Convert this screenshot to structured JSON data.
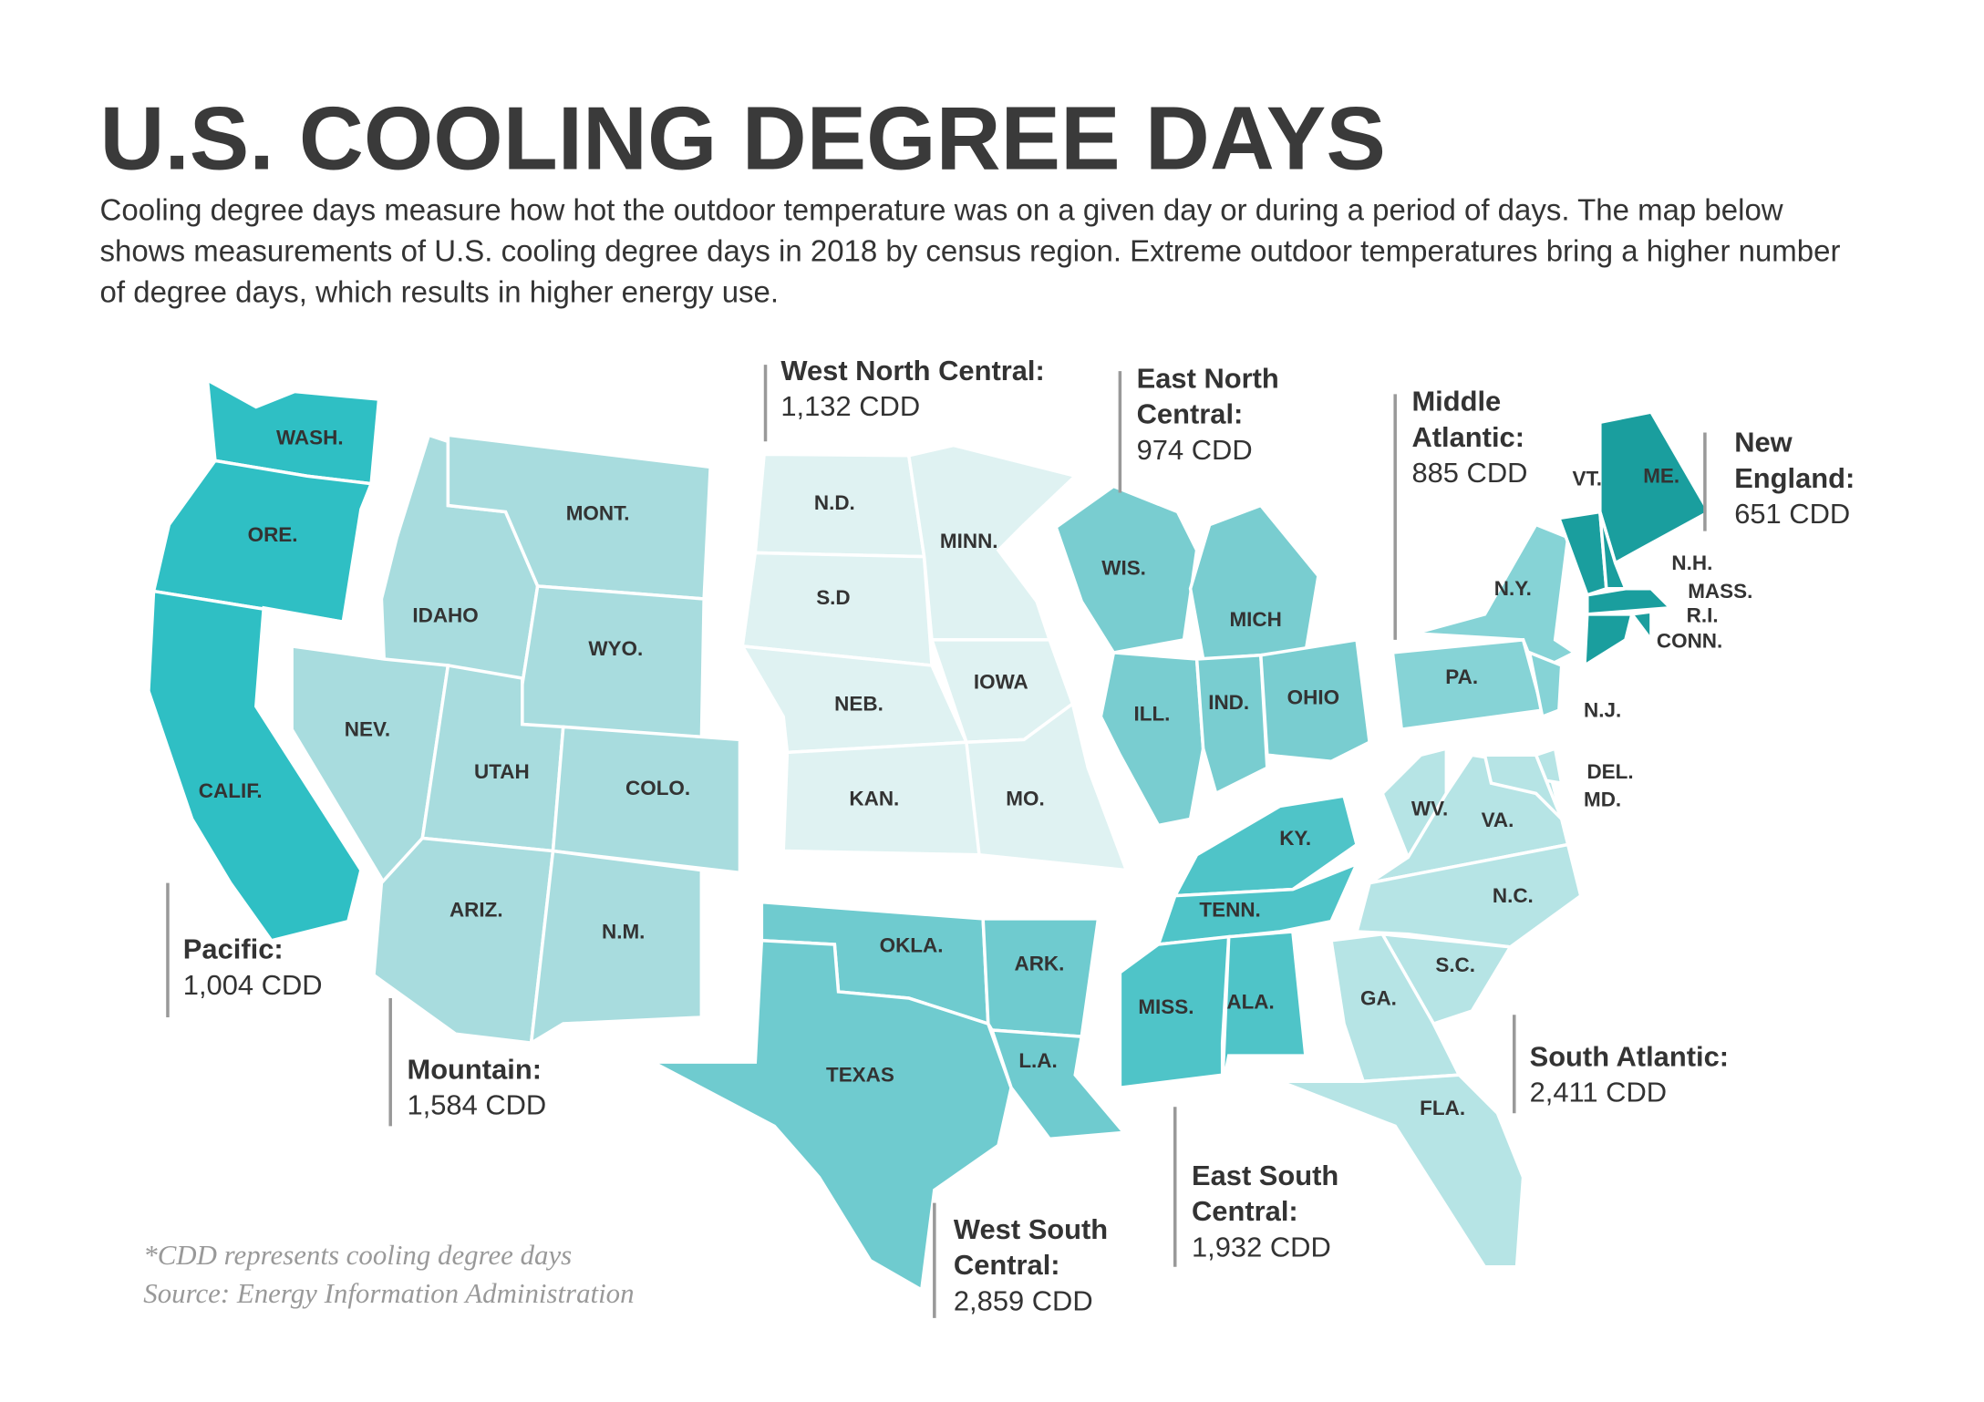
{
  "header": {
    "title": "U.S. COOLING DEGREE DAYS",
    "description": "Cooling degree days measure how hot the outdoor temperature was on a given day or during a period of days. The map below shows measurements of U.S. cooling degree days in 2018 by census region. Extreme outdoor temperatures bring a higher number of degree days, which results in higher energy use."
  },
  "regions": [
    {
      "name": "Pacific:",
      "value": "1,004 CDD",
      "color": "#2fbfc4",
      "states": [
        "WASH.",
        "ORE.",
        "CALIF."
      ]
    },
    {
      "name": "Mountain:",
      "value": "1,584 CDD",
      "color": "#a8dcde",
      "states": [
        "IDAHO",
        "MONT.",
        "WYO.",
        "NEV.",
        "UTAH",
        "COLO.",
        "ARIZ.",
        "N.M."
      ]
    },
    {
      "name": "West North Central:",
      "value": "1,132 CDD",
      "color": "#dff2f2",
      "states": [
        "N.D.",
        "S.D",
        "NEB.",
        "KAN.",
        "MINN.",
        "IOWA",
        "MO."
      ]
    },
    {
      "name": "East North Central:",
      "value": "974 CDD",
      "color": "#79cdd0",
      "states": [
        "WIS.",
        "MICH",
        "ILL.",
        "IND.",
        "OHIO"
      ]
    },
    {
      "name": "Middle Atlantic:",
      "value": "885 CDD",
      "color": "#86d3d6",
      "states": [
        "N.Y.",
        "PA.",
        "N.J."
      ]
    },
    {
      "name": "New England:",
      "value": "651 CDD",
      "color": "#1a9e9e",
      "states": [
        "VT.",
        "ME.",
        "N.H.",
        "MASS.",
        "R.I.",
        "CONN."
      ]
    },
    {
      "name": "South Atlantic:",
      "value": "2,411 CDD",
      "color": "#b6e4e5",
      "states": [
        "WV.",
        "VA.",
        "DEL.",
        "MD.",
        "N.C.",
        "S.C.",
        "GA.",
        "FLA."
      ]
    },
    {
      "name": "East South Central:",
      "value": "1,932 CDD",
      "color": "#4fc4c8",
      "states": [
        "KY.",
        "TENN.",
        "MISS.",
        "ALA."
      ]
    },
    {
      "name": "West South Central:",
      "value": "2,859 CDD",
      "color": "#6fcbcf",
      "states": [
        "OKLA.",
        "TEXAS",
        "ARK.",
        "L.A."
      ]
    }
  ],
  "footnote": [
    "*CDD represents cooling degree days",
    "Source: Energy Information Administration"
  ]
}
